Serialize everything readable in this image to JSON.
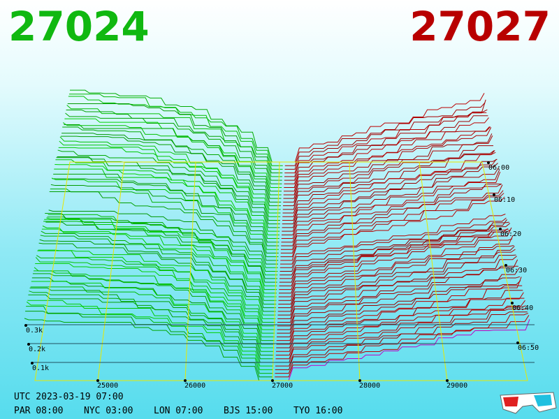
{
  "header": {
    "bid": "27024",
    "ask": "27027"
  },
  "price_axis": {
    "labels": [
      "25000",
      "26000",
      "27000",
      "28000",
      "29000"
    ]
  },
  "time_axis": {
    "labels": [
      "06:00",
      "06:10",
      "06:20",
      "06:30",
      "06:40",
      "06:50"
    ]
  },
  "volume_axis": {
    "labels": [
      "0.3k",
      "0.2k",
      "0.1k"
    ]
  },
  "clock": {
    "utc": "UTC 2023-03-19 07:00",
    "cities": [
      "PAR 08:00",
      "NYC 03:00",
      "LON 07:00",
      "BJS 15:00",
      "TYO 16:00"
    ]
  }
}
